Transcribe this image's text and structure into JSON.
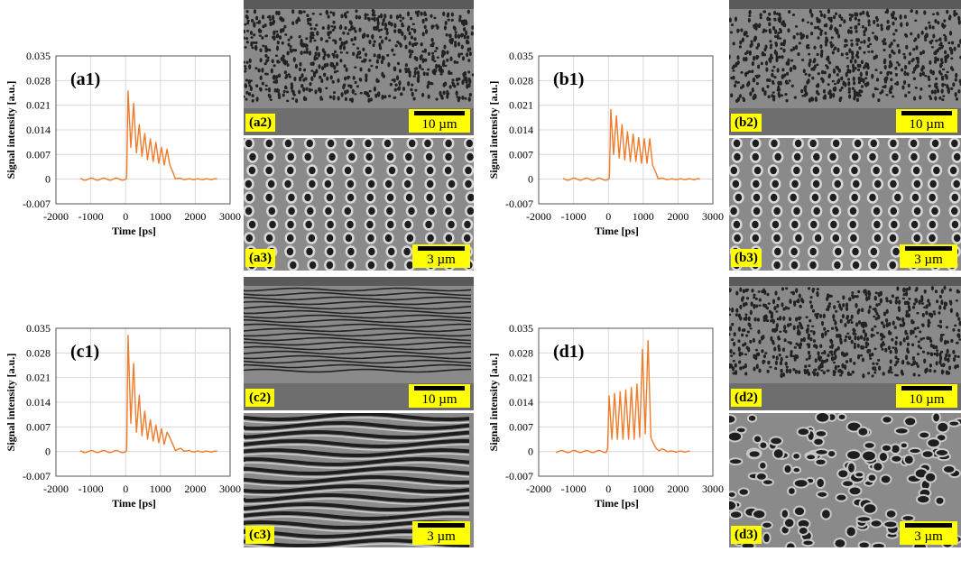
{
  "chart_data": [
    {
      "type": "line",
      "panel_label": "(a1)",
      "xlabel": "Time [ps]",
      "ylabel": "Signal intensity [a.u.]",
      "xlim": [
        -2000,
        3000
      ],
      "ylim": [
        -0.007,
        0.035
      ],
      "xticks": [
        "-2000",
        "-1000",
        "0",
        "1000",
        "2000",
        "3000"
      ],
      "yticks": [
        "0.035",
        "0.028",
        "0.021",
        "0.014",
        "0.007",
        "0",
        "-0.007"
      ],
      "grid": true,
      "line_color": "#f07b2a",
      "pulse": {
        "start": -1300,
        "rise": 20,
        "end": 2650,
        "peak_times": [
          70,
          230,
          390,
          550,
          710,
          870,
          1030,
          1190
        ],
        "peak_values": [
          0.025,
          0.0215,
          0.0155,
          0.013,
          0.0115,
          0.0105,
          0.009,
          0.0085
        ],
        "min_values": [
          0.009,
          0.0075,
          0.0065,
          0.0055,
          0.005,
          0.0045,
          0.004
        ],
        "tail_end": 1600
      }
    },
    {
      "type": "line",
      "panel_label": "(b1)",
      "xlabel": "Time [ps]",
      "ylabel": "Signal intensity [a.u.]",
      "xlim": [
        -2000,
        3000
      ],
      "ylim": [
        -0.007,
        0.035
      ],
      "xticks": [
        "-2000",
        "-1000",
        "0",
        "1000",
        "2000",
        "3000"
      ],
      "yticks": [
        "0.035",
        "0.028",
        "0.021",
        "0.014",
        "0.007",
        "0",
        "-0.007"
      ],
      "grid": true,
      "line_color": "#f07b2a",
      "pulse": {
        "start": -1300,
        "rise": 20,
        "end": 2650,
        "peak_times": [
          70,
          230,
          390,
          550,
          710,
          870,
          1030,
          1190
        ],
        "peak_values": [
          0.0198,
          0.018,
          0.0155,
          0.0135,
          0.0128,
          0.0118,
          0.0115,
          0.0115
        ],
        "min_values": [
          0.007,
          0.006,
          0.0055,
          0.005,
          0.005,
          0.0045,
          0.0045
        ],
        "tail_end": 1600
      }
    },
    {
      "type": "line",
      "panel_label": "(c1)",
      "xlabel": "Time [ps]",
      "ylabel": "Signal intensity [a.u.]",
      "xlim": [
        -2000,
        3000
      ],
      "ylim": [
        -0.007,
        0.035
      ],
      "xticks": [
        "-2000",
        "-1000",
        "0",
        "1000",
        "2000",
        "3000"
      ],
      "yticks": [
        "0.035",
        "0.028",
        "0.021",
        "0.014",
        "0.007",
        "0",
        "-0.007"
      ],
      "grid": true,
      "line_color": "#f07b2a",
      "pulse": {
        "start": -1300,
        "rise": 20,
        "end": 2650,
        "peak_times": [
          70,
          230,
          390,
          550,
          710,
          870,
          1030,
          1190
        ],
        "peak_values": [
          0.033,
          0.025,
          0.016,
          0.0115,
          0.009,
          0.0075,
          0.0065,
          0.0055
        ],
        "min_values": [
          0.008,
          0.0055,
          0.0045,
          0.0035,
          0.003,
          0.0025,
          0.002
        ],
        "tail_end": 1900
      }
    },
    {
      "type": "line",
      "panel_label": "(d1)",
      "xlabel": "Time [ps]",
      "ylabel": "Signal intensity [a.u.]",
      "xlim": [
        -2000,
        3000
      ],
      "ylim": [
        -0.007,
        0.035
      ],
      "xticks": [
        "-2000",
        "-1000",
        "0",
        "1000",
        "2000",
        "3000"
      ],
      "yticks": [
        "0.035",
        "0.028",
        "0.021",
        "0.014",
        "0.007",
        "0",
        "-0.007"
      ],
      "grid": true,
      "line_color": "#f07b2a",
      "pulse": {
        "start": -1500,
        "rise": 0,
        "end": 2400,
        "peak_times": [
          20,
          180,
          340,
          500,
          660,
          820,
          980,
          1140
        ],
        "peak_values": [
          0.0158,
          0.0165,
          0.017,
          0.0175,
          0.0182,
          0.0192,
          0.029,
          0.0315
        ],
        "min_values": [
          0.0035,
          0.0035,
          0.0035,
          0.0035,
          0.0035,
          0.004,
          0.005
        ],
        "tail_end": 1800
      }
    }
  ],
  "images": [
    {
      "label": "(a2)",
      "scale": "10 µm",
      "texture": "mixed"
    },
    {
      "label": "(a3)",
      "scale": "3 µm",
      "texture": "cells"
    },
    {
      "label": "(b2)",
      "scale": "10 µm",
      "texture": "mixed"
    },
    {
      "label": "(b3)",
      "scale": "3 µm",
      "texture": "cells"
    },
    {
      "label": "(c2)",
      "scale": "10 µm",
      "texture": "stripes"
    },
    {
      "label": "(c3)",
      "scale": "3 µm",
      "texture": "waves"
    },
    {
      "label": "(d2)",
      "scale": "10 µm",
      "texture": "mixed"
    },
    {
      "label": "(d3)",
      "scale": "3 µm",
      "texture": "holes"
    }
  ]
}
